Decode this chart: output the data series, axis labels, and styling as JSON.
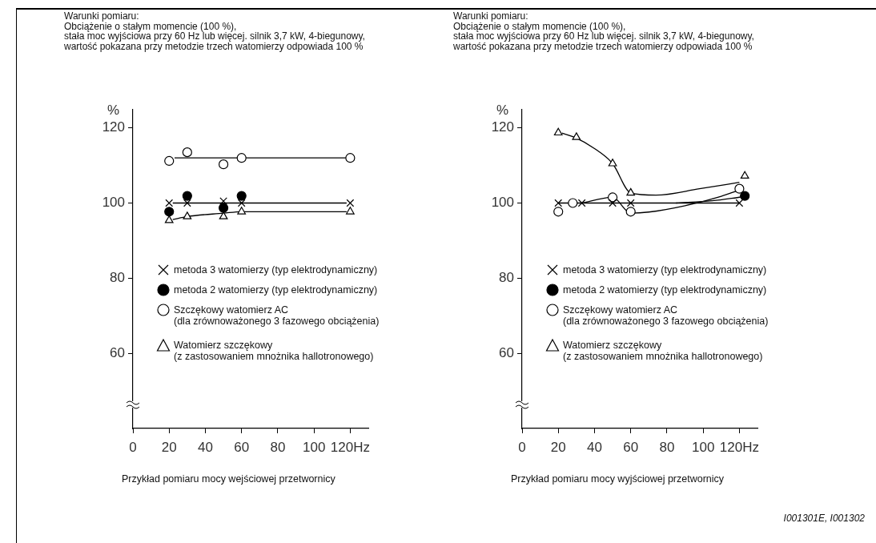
{
  "chart_data": [
    {
      "type": "scatter",
      "annotations": [
        "Warunki pomiaru:\nObciążenie o stałym momencie (100 %),\nstała moc wyjściowa przy 60 Hz lub więcej. silnik 3,7 kW, 4-biegunowy,\nwartość pokazana przy metodzie trzech watomierzy odpowiada 100 %",
        "Przykład pomiaru mocy wejściowej przetwornicy"
      ],
      "ylabel": "%",
      "xlim": [
        0,
        130
      ],
      "xticks": [
        0,
        20,
        40,
        60,
        80,
        100,
        {
          "value": 120,
          "label": "120Hz"
        }
      ],
      "ylim": [
        40,
        125
      ],
      "yticks": [
        60,
        80,
        100,
        120
      ],
      "grid": false,
      "legend": "bottom right",
      "series": [
        {
          "name": "metoda 3 watomierzy (typ elektrodynamiczny)",
          "type": "scatter",
          "marker": "cross",
          "color": "#000000",
          "x": [
            20,
            30,
            50,
            60,
            120
          ],
          "values": [
            100,
            100,
            100.5,
            100,
            100
          ]
        },
        {
          "name": "metoda 2 watomierzy (typ elektrodynamiczny)",
          "type": "scatter",
          "marker": "circle",
          "color": "#000000",
          "x": [
            20,
            30,
            50,
            60
          ],
          "values": [
            97.7,
            101.9,
            98.7,
            101.9
          ]
        },
        {
          "name": "Szczękowy watomierz AC\n(dla zrównoważonego 3 fazowego obciążenia)",
          "type": "scatter",
          "marker": "circle",
          "color": "#ffffff",
          "x": [
            20,
            30,
            50,
            60,
            120
          ],
          "values": [
            111.2,
            113.5,
            110.3,
            112,
            112
          ]
        },
        {
          "name": "Watomierz szczękowy\n(z zastosowaniem mnożnika hallotronowego)",
          "type": "scatter",
          "marker": "triangle",
          "color": "#ffffff",
          "x": [
            20,
            30,
            50,
            60,
            120
          ],
          "values": [
            95.4,
            96.4,
            96.4,
            97.7,
            97.7
          ]
        },
        {
          "type": "line",
          "color": "#000000",
          "x": [
            22,
            118
          ],
          "values": [
            100,
            100
          ]
        },
        {
          "type": "line",
          "color": "#000000",
          "x": [
            23,
            118
          ],
          "values": [
            112,
            112
          ]
        },
        {
          "type": "line",
          "color": "#000000",
          "x": [
            22,
            30,
            50,
            60,
            118
          ],
          "values": [
            95.6,
            96.4,
            97.3,
            97.7,
            97.7
          ]
        }
      ]
    },
    {
      "type": "scatter",
      "annotations": [
        "Warunki pomiaru:\nObciążenie o stałym momencie (100 %),\nstała moc wyjściowa przy 60 Hz lub więcej. silnik 3,7 kW, 4-biegunowy,\nwartość pokazana przy metodzie trzech watomierzy odpowiada 100 %",
        "Przykład pomiaru mocy wyjściowej przetwornicy",
        "I001301E, I001302"
      ],
      "ylabel": "%",
      "xlim": [
        0,
        130
      ],
      "xticks": [
        0,
        20,
        40,
        60,
        80,
        100,
        {
          "value": 120,
          "label": "120Hz"
        }
      ],
      "ylim": [
        40,
        125
      ],
      "yticks": [
        60,
        80,
        100,
        120
      ],
      "grid": false,
      "legend": "bottom right",
      "series": [
        {
          "name": "metoda 3 watomierzy (typ elektrodynamiczny)",
          "type": "scatter",
          "marker": "cross",
          "color": "#000000",
          "x": [
            20,
            33,
            50,
            60,
            120
          ],
          "values": [
            100,
            100,
            100,
            100,
            100
          ]
        },
        {
          "name": "metoda 2 watomierzy (typ elektrodynamiczny)",
          "type": "scatter",
          "marker": "circle",
          "color": "#000000",
          "x": [
            123
          ],
          "values": [
            101.9
          ]
        },
        {
          "name": "Szczękowy watomierz AC\n(dla zrównoważonego 3 fazowego obciążenia)",
          "type": "scatter",
          "marker": "circle",
          "color": "#ffffff",
          "x": [
            20,
            28,
            50,
            60,
            120
          ],
          "values": [
            97.7,
            100,
            101.5,
            97.7,
            103.8
          ]
        },
        {
          "name": "Watomierz szczękowy\n(z zastosowaniem mnożnika hallotronowego)",
          "type": "scatter",
          "marker": "triangle",
          "color": "#ffffff",
          "x": [
            20,
            30,
            50,
            60,
            123
          ],
          "values": [
            118.7,
            117.5,
            110.5,
            102.7,
            107.2
          ]
        },
        {
          "type": "line",
          "color": "#000000",
          "x": [
            20,
            120
          ],
          "values": [
            100,
            100
          ]
        },
        {
          "type": "line",
          "color": "#000000",
          "x": [
            33,
            50,
            60,
            70,
            90,
            110,
            119
          ],
          "values": [
            100,
            101.5,
            97.3,
            97.6,
            99.3,
            101.8,
            103.3
          ]
        },
        {
          "type": "line",
          "color": "#000000",
          "x": [
            22,
            29,
            40,
            50,
            60,
            74,
            98,
            120
          ],
          "values": [
            118.6,
            117.5,
            114.5,
            110.5,
            102.7,
            102.1,
            103.8,
            105.5
          ]
        },
        {
          "type": "line",
          "color": "#000000",
          "x": [
            85,
            105,
            121
          ],
          "values": [
            100,
            100.6,
            101.6
          ]
        }
      ]
    }
  ]
}
